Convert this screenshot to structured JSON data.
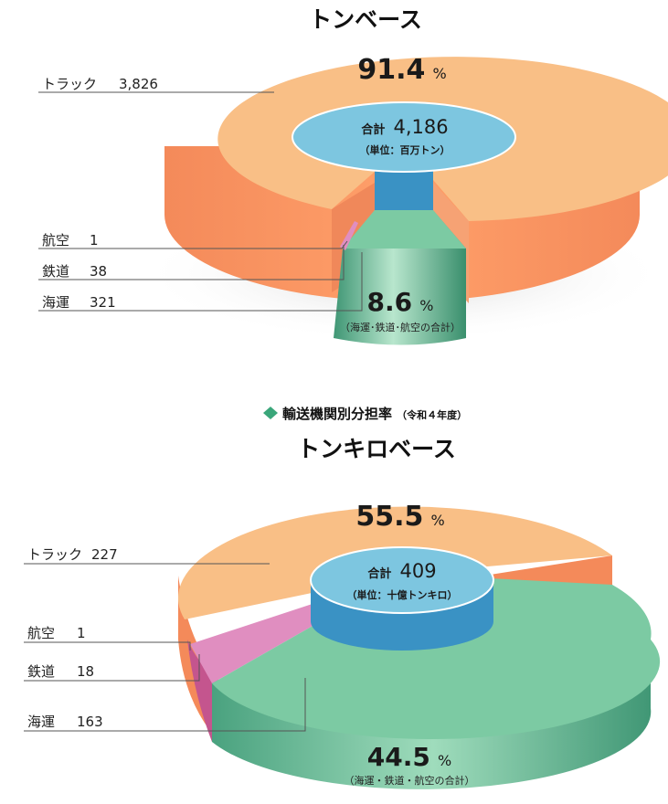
{
  "section_title": {
    "icon": "diamond-bullet-icon",
    "icon_color": "#3aa67a",
    "text": "輸送機関別分担率",
    "note": "（令和４年度）"
  },
  "chart_data": [
    {
      "type": "pie",
      "title": "トンベース",
      "total_label": "合計",
      "total": "4,186",
      "unit": "（単位：百万トン）",
      "slices": [
        {
          "name": "トラック",
          "value": 3826,
          "display": "3,826",
          "color": "#f9b97c"
        },
        {
          "name": "航空",
          "value": 1,
          "display": "1",
          "color": "#e08ec0"
        },
        {
          "name": "鉄道",
          "value": 38,
          "display": "38",
          "color": "#e08ec0"
        },
        {
          "name": "海運",
          "value": 321,
          "display": "321",
          "color": "#7ccaa3"
        }
      ],
      "groups": [
        {
          "percent": "91.4",
          "caption": ""
        },
        {
          "percent": "8.6",
          "caption": "（海運･鉄道･航空の合計）"
        }
      ]
    },
    {
      "type": "pie",
      "title": "トンキロベース",
      "total_label": "合計",
      "total": "409",
      "unit": "（単位：十億トンキロ）",
      "slices": [
        {
          "name": "トラック",
          "value": 227,
          "display": "227",
          "color": "#f9b97c"
        },
        {
          "name": "航空",
          "value": 1,
          "display": "1",
          "color": "#e08ec0"
        },
        {
          "name": "鉄道",
          "value": 18,
          "display": "18",
          "color": "#e08ec0"
        },
        {
          "name": "海運",
          "value": 163,
          "display": "163",
          "color": "#7ccaa3"
        }
      ],
      "groups": [
        {
          "percent": "55.5",
          "caption": ""
        },
        {
          "percent": "44.5",
          "caption": "（海運・鉄道・航空の合計）"
        }
      ]
    }
  ],
  "percent_sign": "%"
}
